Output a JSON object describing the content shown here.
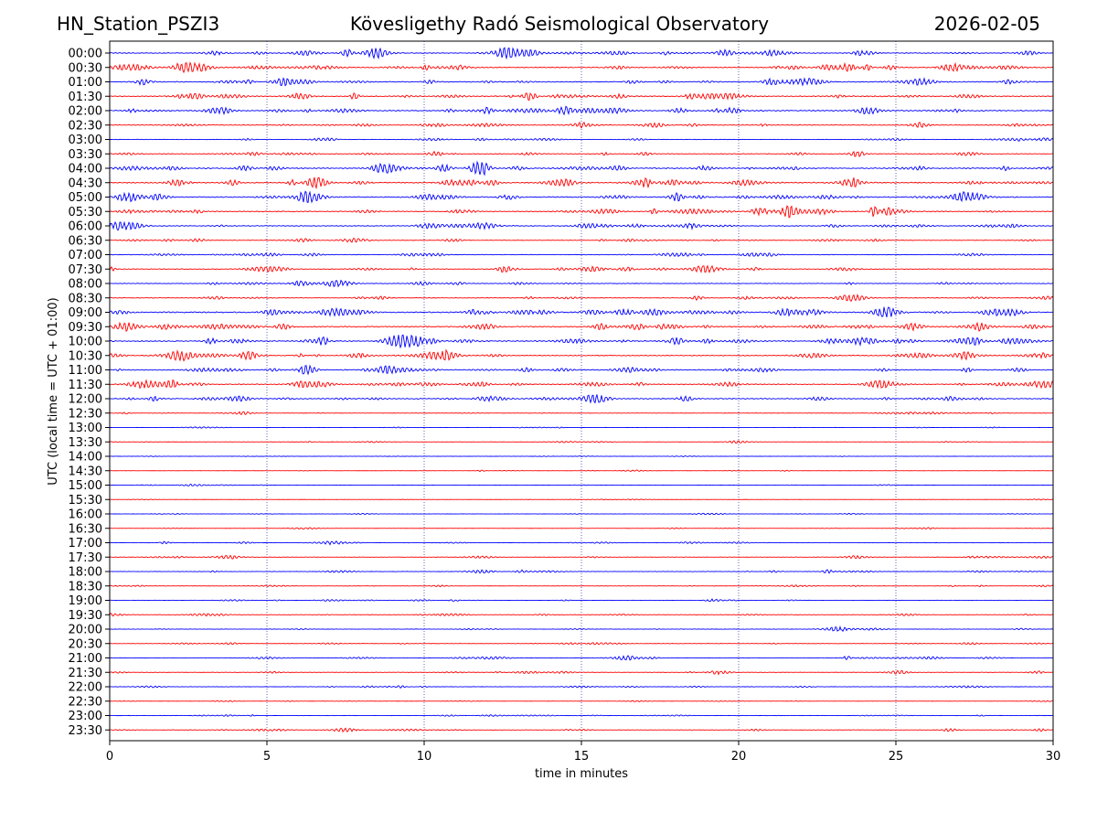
{
  "header": {
    "station": "HN_Station_PSZI3",
    "observatory": "Kövesligethy Radó Seismological Observatory",
    "date": "2026-02-05"
  },
  "chart_data": {
    "type": "line",
    "title": "Kövesligethy Radó Seismological Observatory",
    "xlabel": "time in minutes",
    "ylabel": "UTC (local time = UTC + 01:00)",
    "xlim": [
      0,
      30
    ],
    "xticks": [
      0,
      5,
      10,
      15,
      20,
      25,
      30
    ],
    "vertical_grid": true,
    "series_colors": [
      "#0000ff",
      "#ff0000"
    ],
    "rows": [
      "00:00",
      "00:30",
      "01:00",
      "01:30",
      "02:00",
      "02:30",
      "03:00",
      "03:30",
      "04:00",
      "04:30",
      "05:00",
      "05:30",
      "06:00",
      "06:30",
      "07:00",
      "07:30",
      "08:00",
      "08:30",
      "09:00",
      "09:30",
      "10:00",
      "10:30",
      "11:00",
      "11:30",
      "12:00",
      "12:30",
      "13:00",
      "13:30",
      "14:00",
      "14:30",
      "15:00",
      "15:30",
      "16:00",
      "16:30",
      "17:00",
      "17:30",
      "18:00",
      "18:30",
      "19:00",
      "19:30",
      "20:00",
      "20:30",
      "21:00",
      "21:30",
      "22:00",
      "22:30",
      "23:00",
      "23:30"
    ],
    "activity": [
      0.8,
      0.9,
      0.8,
      0.9,
      0.9,
      0.6,
      0.4,
      0.6,
      0.9,
      1.0,
      0.9,
      0.8,
      0.7,
      0.5,
      0.5,
      0.6,
      0.5,
      0.5,
      1.0,
      1.0,
      1.0,
      0.8,
      0.8,
      0.8,
      0.8,
      0.3,
      0.2,
      0.25,
      0.15,
      0.15,
      0.15,
      0.15,
      0.2,
      0.2,
      0.3,
      0.35,
      0.35,
      0.3,
      0.3,
      0.35,
      0.3,
      0.35,
      0.35,
      0.35,
      0.3,
      0.2,
      0.3,
      0.35
    ]
  }
}
